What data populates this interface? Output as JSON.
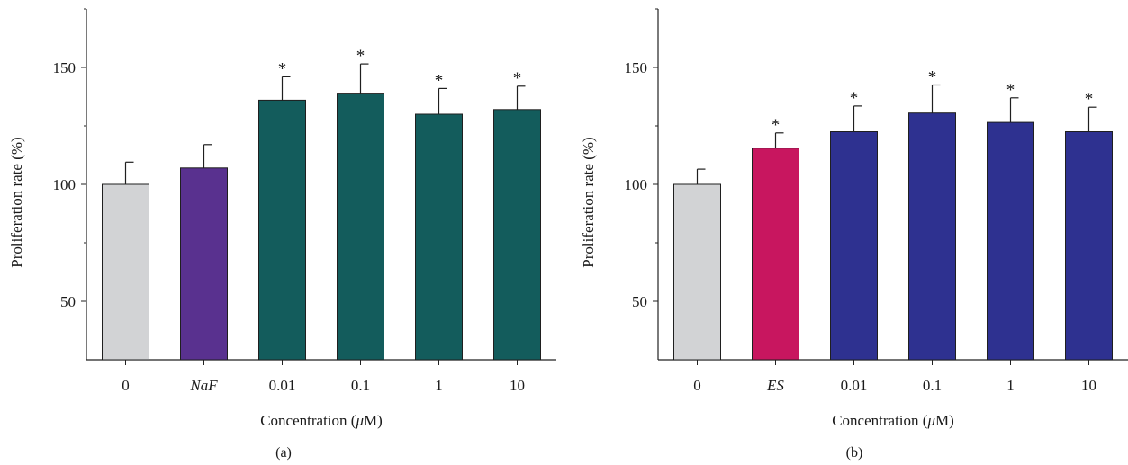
{
  "chart_data": [
    {
      "type": "bar",
      "panel_label": "(a)",
      "categories": [
        "0",
        "NaF",
        "0.01",
        "0.1",
        "1",
        "10"
      ],
      "italic_categories": [
        "NaF"
      ],
      "values": [
        100,
        107,
        136,
        139,
        130,
        132
      ],
      "errors": [
        9.5,
        10,
        10,
        12.5,
        11,
        10
      ],
      "significance": [
        "",
        "",
        "*",
        "*",
        "*",
        "*"
      ],
      "colors": [
        "#d2d3d5",
        "#59318f",
        "#135c5c",
        "#135c5c",
        "#135c5c",
        "#135c5c"
      ],
      "ylabel": "Proliferation rate (%)",
      "xlabel_prefix": "Concentration (",
      "xlabel_unit_symbol": "μ",
      "xlabel_suffix": "M)",
      "ylim": [
        25,
        175
      ],
      "yticks": [
        "50",
        "100",
        "150"
      ],
      "grid": false
    },
    {
      "type": "bar",
      "panel_label": "(b)",
      "categories": [
        "0",
        "ES",
        "0.01",
        "0.1",
        "1",
        "10"
      ],
      "italic_categories": [
        "ES"
      ],
      "values": [
        100,
        115.5,
        122.5,
        130.5,
        126.5,
        122.5
      ],
      "errors": [
        6.5,
        6.5,
        11,
        12,
        10.5,
        10.5
      ],
      "significance": [
        "",
        "*",
        "*",
        "*",
        "*",
        "*"
      ],
      "colors": [
        "#d2d3d5",
        "#c8165f",
        "#2e3190",
        "#2e3190",
        "#2e3190",
        "#2e3190"
      ],
      "ylabel": "Proliferation rate (%)",
      "xlabel_prefix": "Concentration (",
      "xlabel_unit_symbol": "μ",
      "xlabel_suffix": "M)",
      "ylim": [
        25,
        175
      ],
      "yticks": [
        "50",
        "100",
        "150"
      ],
      "grid": false
    }
  ]
}
